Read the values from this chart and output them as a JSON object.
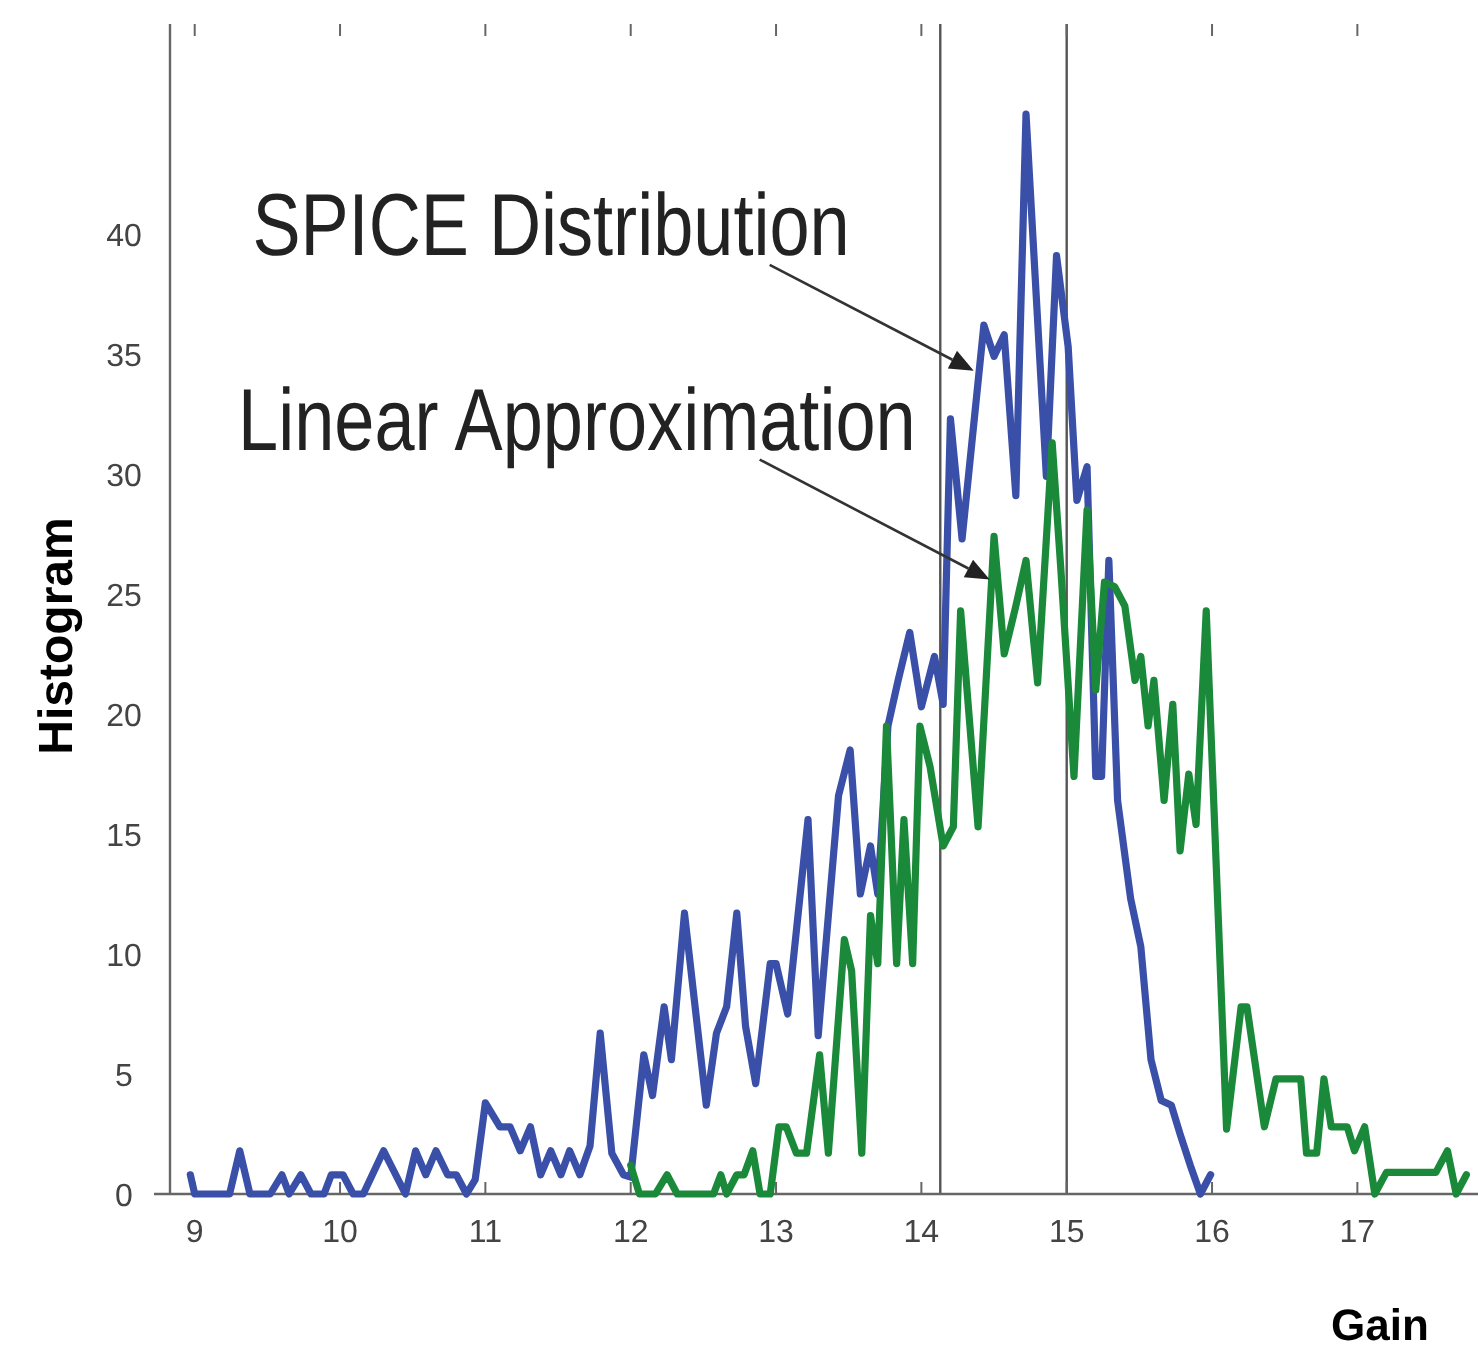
{
  "chart_data": {
    "type": "line",
    "xlabel": "Gain",
    "ylabel": "Histogram",
    "xlim": [
      8.83,
      17.83
    ],
    "ylim": [
      0,
      48.75
    ],
    "xticks": [
      9,
      10,
      11,
      12,
      13,
      14,
      15,
      16,
      17
    ],
    "yticks": [
      0,
      5,
      10,
      15,
      20,
      25,
      30,
      35,
      40
    ],
    "grid": false,
    "line_style": "solid",
    "marker": "none",
    "series": [
      {
        "color": "#3a4fa8",
        "x": [
          8.97,
          9.0,
          9.24,
          9.31,
          9.38,
          9.52,
          9.6,
          9.65,
          9.73,
          9.8,
          9.89,
          9.94,
          10.02,
          10.09,
          10.16,
          10.3,
          10.45,
          10.52,
          10.59,
          10.66,
          10.74,
          10.8,
          10.87,
          10.93,
          11.0,
          11.1,
          11.17,
          11.24,
          11.31,
          11.38,
          11.45,
          11.52,
          11.58,
          11.65,
          11.72,
          11.79,
          11.87,
          11.95,
          12.0,
          12.09,
          12.15,
          12.23,
          12.28,
          12.37,
          12.52,
          12.59,
          12.66,
          12.73,
          12.79,
          12.86,
          12.96,
          13.0,
          13.08,
          13.22,
          13.29,
          13.43,
          13.51,
          13.58,
          13.65,
          13.7,
          13.77,
          13.84,
          13.92,
          14.0,
          14.09,
          14.15,
          14.2,
          14.28,
          14.43,
          14.5,
          14.57,
          14.65,
          14.72,
          14.86,
          14.93,
          15.01,
          15.07,
          15.14,
          15.2,
          15.24,
          15.29,
          15.35,
          15.44,
          15.51,
          15.58,
          15.65,
          15.72,
          15.78,
          15.85,
          15.92,
          15.99
        ],
        "values": [
          0.8,
          0,
          0,
          1.8,
          0,
          0,
          0.8,
          0,
          0.8,
          0,
          0,
          0.8,
          0.8,
          0,
          0,
          1.8,
          0,
          1.8,
          0.8,
          1.8,
          0.8,
          0.8,
          0,
          0.6,
          3.8,
          2.8,
          2.8,
          1.8,
          2.8,
          0.8,
          1.8,
          0.8,
          1.8,
          0.8,
          2,
          6.7,
          1.7,
          0.8,
          0.7,
          5.8,
          4.1,
          7.8,
          5.6,
          11.7,
          3.7,
          6.7,
          7.8,
          11.7,
          7,
          4.6,
          9.6,
          9.6,
          7.5,
          15.6,
          6.6,
          16.6,
          18.5,
          12.5,
          14.5,
          12.5,
          19.5,
          21.4,
          23.4,
          20.3,
          22.4,
          20.4,
          32.3,
          27.3,
          36.2,
          34.9,
          35.8,
          29.1,
          45,
          29.9,
          39.1,
          35.3,
          28.9,
          30.3,
          17.4,
          17.4,
          26.4,
          16.4,
          12.3,
          10.3,
          5.6,
          3.9,
          3.7,
          2.5,
          1.2,
          0,
          0.8
        ]
      },
      {
        "color": "#1a8a3a",
        "x": [
          12.0,
          12.06,
          12.17,
          12.25,
          12.32,
          12.57,
          12.62,
          12.66,
          12.73,
          12.78,
          12.84,
          12.89,
          12.96,
          13.02,
          13.07,
          13.14,
          13.21,
          13.3,
          13.36,
          13.47,
          13.52,
          13.59,
          13.65,
          13.7,
          13.76,
          13.83,
          13.88,
          13.94,
          13.99,
          14.06,
          14.15,
          14.22,
          14.27,
          14.39,
          14.5,
          14.57,
          14.65,
          14.72,
          14.8,
          14.9,
          14.96,
          15.05,
          15.14,
          15.2,
          15.26,
          15.33,
          15.4,
          15.47,
          15.51,
          15.56,
          15.6,
          15.67,
          15.73,
          15.78,
          15.84,
          15.89,
          15.96,
          16.1,
          16.2,
          16.24,
          16.36,
          16.44,
          16.61,
          16.65,
          16.72,
          16.77,
          16.82,
          16.93,
          16.98,
          17.05,
          17.12,
          17.2,
          17.54,
          17.62,
          17.68,
          17.75
        ],
        "values": [
          1.2,
          0,
          0,
          0.8,
          0,
          0,
          0.8,
          0,
          0.8,
          0.8,
          1.8,
          0,
          0,
          2.8,
          2.8,
          1.7,
          1.7,
          5.8,
          1.7,
          10.6,
          9.3,
          1.7,
          11.6,
          9.6,
          19.5,
          9.6,
          15.6,
          9.6,
          19.5,
          17.8,
          14.5,
          15.3,
          24.3,
          15.3,
          27.4,
          22.5,
          24.5,
          26.4,
          21.3,
          31.3,
          26,
          17.4,
          28.5,
          21,
          25.5,
          25.3,
          24.5,
          21.4,
          22.4,
          19.5,
          21.4,
          16.4,
          20.4,
          14.3,
          17.5,
          15.4,
          24.3,
          2.7,
          7.8,
          7.8,
          2.8,
          4.8,
          4.8,
          1.7,
          1.7,
          4.8,
          2.8,
          2.8,
          1.8,
          2.8,
          0,
          0.9,
          0.9,
          1.8,
          0,
          0.8
        ]
      }
    ],
    "ref_lines": [
      {
        "axis": "x",
        "value": 14.13,
        "color": "#555555"
      },
      {
        "axis": "x",
        "value": 15.0,
        "color": "#555555"
      }
    ],
    "annotations": [
      {
        "text": "SPICE Distribution",
        "x": 14.36,
        "y": 34.3
      },
      {
        "text": "Linear Approximation",
        "x": 14.47,
        "y": 25.6
      }
    ]
  }
}
